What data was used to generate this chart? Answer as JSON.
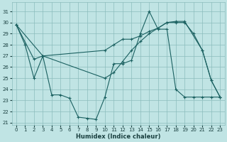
{
  "background_color": "#c0e4e4",
  "grid_color": "#8bbcbc",
  "line_color": "#1a6060",
  "xlabel": "Humidex (Indice chaleur)",
  "xlim": [
    -0.5,
    23.5
  ],
  "ylim": [
    20.8,
    31.8
  ],
  "yticks": [
    21,
    22,
    23,
    24,
    25,
    26,
    27,
    28,
    29,
    30,
    31
  ],
  "xticks": [
    0,
    1,
    2,
    3,
    4,
    5,
    6,
    7,
    8,
    9,
    10,
    11,
    12,
    13,
    14,
    15,
    16,
    17,
    18,
    19,
    20,
    21,
    22,
    23
  ],
  "line_A_x": [
    0,
    3,
    10,
    11,
    12,
    13,
    14,
    15,
    16,
    17,
    18,
    19,
    20,
    21,
    22,
    23
  ],
  "line_A_y": [
    29.8,
    27.0,
    27.5,
    28.0,
    28.5,
    28.5,
    28.8,
    29.2,
    29.5,
    30.0,
    30.0,
    30.0,
    29.0,
    27.5,
    24.8,
    23.3
  ],
  "line_B_x": [
    0,
    2,
    3,
    10,
    11,
    12,
    13,
    14,
    15,
    16,
    17,
    18,
    19,
    21,
    22,
    23
  ],
  "line_B_y": [
    29.8,
    26.7,
    27.0,
    25.0,
    25.5,
    26.5,
    27.5,
    28.3,
    29.0,
    29.5,
    30.0,
    30.1,
    30.1,
    27.5,
    24.8,
    23.3
  ],
  "line_C_x": [
    0,
    1,
    2,
    3,
    4,
    5,
    6,
    7,
    8,
    9,
    10,
    11,
    12,
    13,
    14,
    15,
    16,
    17,
    18,
    19,
    20,
    21,
    22,
    23
  ],
  "line_C_y": [
    29.8,
    28.0,
    25.0,
    27.0,
    23.5,
    23.5,
    23.2,
    21.5,
    21.4,
    21.3,
    23.3,
    26.3,
    26.3,
    26.6,
    29.0,
    31.0,
    29.4,
    29.4,
    24.0,
    23.3,
    23.3,
    23.3,
    23.3,
    23.3
  ]
}
